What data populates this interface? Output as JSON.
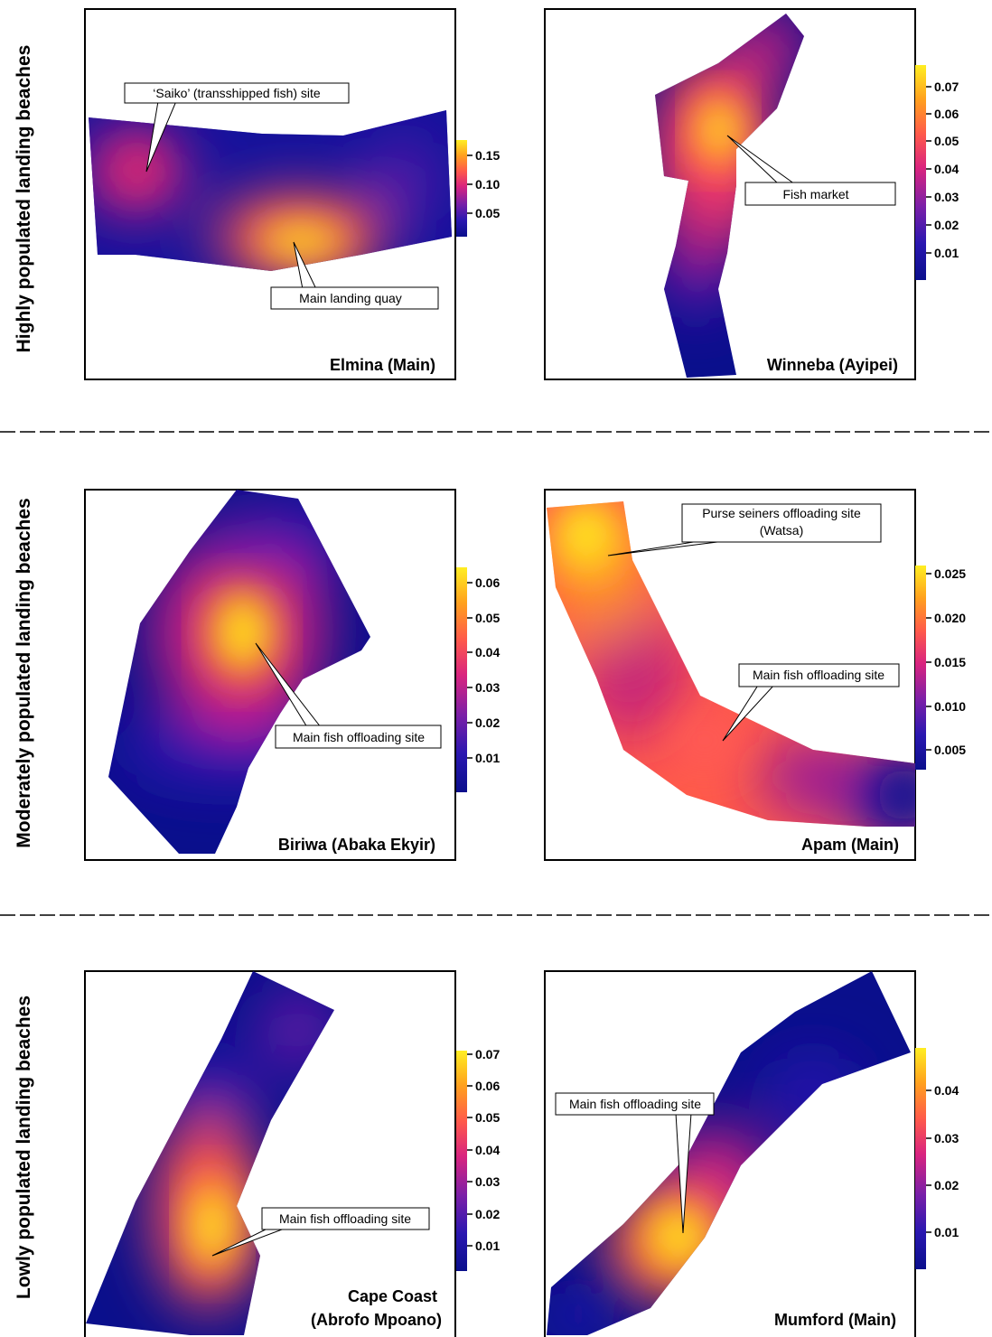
{
  "row_labels": [
    "Highly populated landing beaches",
    "Moderately populated landing beaches",
    "Lowly populated landing beaches"
  ],
  "colors": {
    "scale": [
      "#0a0f8c",
      "#2a17b0",
      "#7a1fa8",
      "#d9247f",
      "#ff5a4a",
      "#ffa01e",
      "#ffee22"
    ],
    "frame": "#000000",
    "divider": "#000000"
  },
  "chart_data": [
    {
      "type": "heatmap",
      "title": "Elmina (Main)",
      "colorbar": {
        "ticks": [
          "0.15",
          "0.10",
          "0.05"
        ],
        "values": [
          0.15,
          0.1,
          0.05
        ],
        "min": 0.02,
        "max": 0.17
      },
      "annotations": [
        "‘Saiko’ (transshipped fish) site",
        "Main landing quay"
      ],
      "hotspots": [
        {
          "label": "‘Saiko’ (transshipped fish) site",
          "value": 0.11
        },
        {
          "label": "Main landing quay",
          "value": 0.17
        }
      ]
    },
    {
      "type": "heatmap",
      "title": "Winneba (Ayipei)",
      "colorbar": {
        "ticks": [
          "0.07",
          "0.06",
          "0.05",
          "0.04",
          "0.03",
          "0.02",
          "0.01"
        ],
        "values": [
          0.07,
          0.06,
          0.05,
          0.04,
          0.03,
          0.02,
          0.01
        ],
        "min": 0.0,
        "max": 0.075
      },
      "annotations": [
        "Fish market"
      ],
      "hotspots": [
        {
          "label": "Fish market",
          "value": 0.075
        }
      ]
    },
    {
      "type": "heatmap",
      "title": "Biriwa (Abaka Ekyir)",
      "colorbar": {
        "ticks": [
          "0.06",
          "0.05",
          "0.04",
          "0.03",
          "0.02",
          "0.01"
        ],
        "values": [
          0.06,
          0.05,
          0.04,
          0.03,
          0.02,
          0.01
        ],
        "min": 0.0,
        "max": 0.064
      },
      "annotations": [
        "Main fish offloading site"
      ],
      "hotspots": [
        {
          "label": "Main fish offloading site",
          "value": 0.064
        }
      ]
    },
    {
      "type": "heatmap",
      "title": "Apam (Main)",
      "colorbar": {
        "ticks": [
          "0.025",
          "0.020",
          "0.015",
          "0.010",
          "0.005"
        ],
        "values": [
          0.025,
          0.02,
          0.015,
          0.01,
          0.005
        ],
        "min": 0.0,
        "max": 0.0265
      },
      "annotations": [
        "Purse seiners offloading site",
        "(Watsa)",
        "Main fish offloading site"
      ],
      "hotspots": [
        {
          "label": "Purse seiners offloading site (Watsa)",
          "value": 0.026
        },
        {
          "label": "Main fish offloading site",
          "value": 0.017
        }
      ]
    },
    {
      "type": "heatmap",
      "title": "Cape Coast",
      "title2": "(Abrofo Mpoano)",
      "colorbar": {
        "ticks": [
          "0.07",
          "0.06",
          "0.05",
          "0.04",
          "0.03",
          "0.02",
          "0.01"
        ],
        "values": [
          0.07,
          0.06,
          0.05,
          0.04,
          0.03,
          0.02,
          0.01
        ],
        "min": 0.0,
        "max": 0.075
      },
      "annotations": [
        "Main fish offloading site"
      ],
      "hotspots": [
        {
          "label": "Main fish offloading site",
          "value": 0.075
        }
      ]
    },
    {
      "type": "heatmap",
      "title": "Mumford (Main)",
      "colorbar": {
        "ticks": [
          "0.04",
          "0.03",
          "0.02",
          "0.01"
        ],
        "values": [
          0.04,
          0.03,
          0.02,
          0.01
        ],
        "min": 0.0,
        "max": 0.048
      },
      "annotations": [
        "Main fish offloading site"
      ],
      "hotspots": [
        {
          "label": "Main fish offloading site",
          "value": 0.048
        }
      ]
    }
  ]
}
